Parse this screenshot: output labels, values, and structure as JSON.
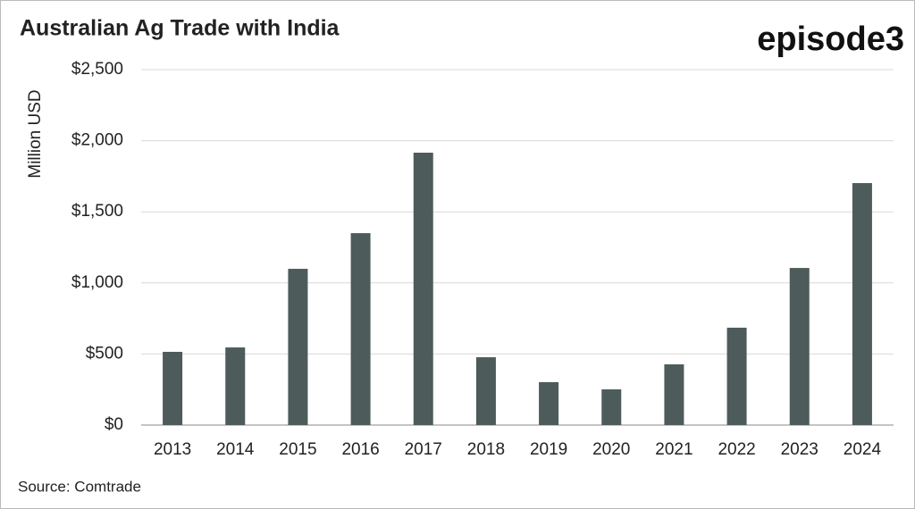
{
  "chart_data": {
    "type": "bar",
    "title": "Australian Ag Trade with India",
    "brand": "episode3",
    "y_label": "Million USD",
    "source": "Source: Comtrade",
    "categories": [
      "2013",
      "2014",
      "2015",
      "2016",
      "2017",
      "2018",
      "2019",
      "2020",
      "2021",
      "2022",
      "2023",
      "2024"
    ],
    "values": [
      515,
      546,
      1099,
      1350,
      1916,
      477,
      302,
      251,
      427,
      685,
      1105,
      1702
    ],
    "color": "#4d5b5b",
    "ylim": [
      0,
      2500
    ],
    "yticks": [
      {
        "value": 0,
        "label": "$0"
      },
      {
        "value": 500,
        "label": "$500"
      },
      {
        "value": 1000,
        "label": "$1,000"
      },
      {
        "value": 1500,
        "label": "$1,500"
      },
      {
        "value": 2000,
        "label": "$2,000"
      },
      {
        "value": 2500,
        "label": "$2,500"
      }
    ],
    "grid": true
  }
}
